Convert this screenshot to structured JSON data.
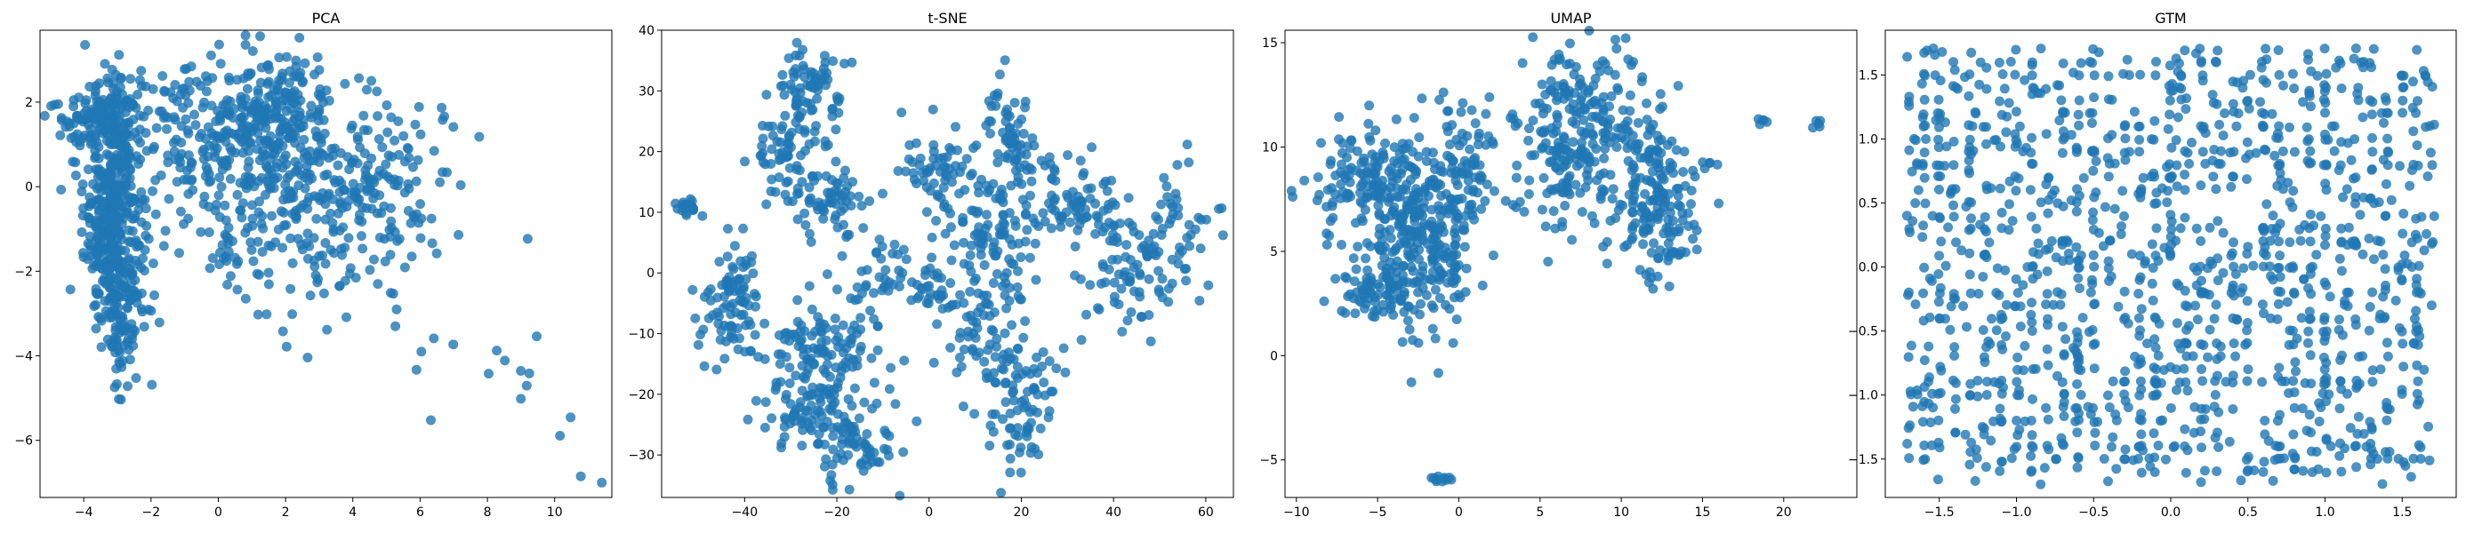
{
  "chart_data": [
    {
      "type": "scatter",
      "title": "PCA",
      "xlabel": "",
      "ylabel": "",
      "xlim": [
        -5.3,
        11.7
      ],
      "ylim": [
        -7.35,
        3.7
      ],
      "xticks": [
        -4,
        -2,
        0,
        2,
        4,
        6,
        8,
        10
      ],
      "yticks": [
        -6,
        -4,
        -2,
        0,
        2
      ],
      "grid": false,
      "color": "#1f77b4",
      "point_clusters": [
        {
          "center": [
            -3.1,
            -0.6
          ],
          "spread": [
            0.45,
            1.45
          ],
          "count": 420
        },
        {
          "center": [
            -3.5,
            1.7
          ],
          "spread": [
            0.7,
            0.5
          ],
          "count": 120
        },
        {
          "center": [
            -3.0,
            -2.8
          ],
          "spread": [
            0.35,
            0.9
          ],
          "count": 80
        },
        {
          "center": [
            -0.7,
            1.4
          ],
          "spread": [
            0.9,
            0.9
          ],
          "count": 90
        },
        {
          "center": [
            1.6,
            1.4
          ],
          "spread": [
            0.9,
            0.9
          ],
          "count": 260
        },
        {
          "center": [
            0.8,
            -0.4
          ],
          "spread": [
            1.4,
            1.1
          ],
          "count": 140
        },
        {
          "center": [
            3.8,
            0.3
          ],
          "spread": [
            1.2,
            1.0
          ],
          "count": 110
        },
        {
          "center": [
            5.6,
            0.0
          ],
          "spread": [
            1.0,
            0.9
          ],
          "count": 70
        },
        {
          "center": [
            3.5,
            -1.8
          ],
          "spread": [
            1.3,
            0.9
          ],
          "count": 50
        },
        {
          "center": [
            8.7,
            -4.6
          ],
          "spread": [
            1.2,
            0.9
          ],
          "count": 14
        },
        {
          "center": [
            10.7,
            -6.8
          ],
          "spread": [
            0.3,
            0.12
          ],
          "count": 2
        }
      ]
    },
    {
      "type": "scatter",
      "title": "t-SNE",
      "xlabel": "",
      "ylabel": "",
      "xlim": [
        -58,
        66
      ],
      "ylim": [
        -37,
        40
      ],
      "xticks": [
        -40,
        -20,
        0,
        20,
        40,
        60
      ],
      "yticks": [
        -30,
        -20,
        -10,
        0,
        10,
        20,
        30,
        40
      ],
      "grid": false,
      "color": "#1f77b4",
      "point_clusters": [
        {
          "center": [
            -52,
            11
          ],
          "spread": [
            1.5,
            0.8
          ],
          "count": 18
        },
        {
          "center": [
            -26,
            31
          ],
          "spread": [
            3.5,
            3.5
          ],
          "count": 70
        },
        {
          "center": [
            -30,
            20
          ],
          "spread": [
            4,
            4
          ],
          "count": 70
        },
        {
          "center": [
            -21,
            12
          ],
          "spread": [
            4,
            4
          ],
          "count": 60
        },
        {
          "center": [
            -42,
            -5
          ],
          "spread": [
            4,
            5
          ],
          "count": 90
        },
        {
          "center": [
            -22,
            -12
          ],
          "spread": [
            6,
            4
          ],
          "count": 110
        },
        {
          "center": [
            -28,
            -22
          ],
          "spread": [
            5,
            3
          ],
          "count": 70
        },
        {
          "center": [
            -17,
            -28
          ],
          "spread": [
            6,
            3
          ],
          "count": 80
        },
        {
          "center": [
            -10,
            0
          ],
          "spread": [
            3,
            3
          ],
          "count": 30
        },
        {
          "center": [
            0,
            -2
          ],
          "spread": [
            3,
            2
          ],
          "count": 30
        },
        {
          "center": [
            5,
            15
          ],
          "spread": [
            4,
            5
          ],
          "count": 60
        },
        {
          "center": [
            18,
            22
          ],
          "spread": [
            2.5,
            5
          ],
          "count": 70
        },
        {
          "center": [
            14,
            5
          ],
          "spread": [
            5,
            5
          ],
          "count": 80
        },
        {
          "center": [
            10,
            -8
          ],
          "spread": [
            4,
            5
          ],
          "count": 60
        },
        {
          "center": [
            20,
            -22
          ],
          "spread": [
            4,
            7
          ],
          "count": 90
        },
        {
          "center": [
            32,
            12
          ],
          "spread": [
            5,
            4
          ],
          "count": 70
        },
        {
          "center": [
            42,
            0
          ],
          "spread": [
            5,
            5
          ],
          "count": 70
        },
        {
          "center": [
            54,
            5
          ],
          "spread": [
            4,
            6
          ],
          "count": 50
        },
        {
          "center": [
            0,
            20
          ],
          "spread": [
            3,
            3
          ],
          "count": 20
        }
      ]
    },
    {
      "type": "scatter",
      "title": "UMAP",
      "xlabel": "",
      "ylabel": "",
      "xlim": [
        -10.7,
        24.5
      ],
      "ylim": [
        -6.8,
        15.6
      ],
      "xticks": [
        -10,
        -5,
        0,
        5,
        10,
        15,
        20
      ],
      "yticks": [
        -5,
        0,
        5,
        10,
        15
      ],
      "grid": false,
      "color": "#1f77b4",
      "point_clusters": [
        {
          "center": [
            -2.5,
            6.0
          ],
          "spread": [
            1.8,
            2.4
          ],
          "count": 320
        },
        {
          "center": [
            -6.0,
            8.5
          ],
          "spread": [
            1.5,
            1.2
          ],
          "count": 110
        },
        {
          "center": [
            -4.5,
            3.0
          ],
          "spread": [
            1.5,
            0.7
          ],
          "count": 60
        },
        {
          "center": [
            0.5,
            9.5
          ],
          "spread": [
            1.0,
            1.5
          ],
          "count": 60
        },
        {
          "center": [
            7.5,
            10.5
          ],
          "spread": [
            2.0,
            2.2
          ],
          "count": 260
        },
        {
          "center": [
            12.0,
            7.5
          ],
          "spread": [
            1.5,
            2.0
          ],
          "count": 170
        },
        {
          "center": [
            -1.2,
            -5.9
          ],
          "spread": [
            0.4,
            0.12
          ],
          "count": 12
        },
        {
          "center": [
            18.6,
            11.3
          ],
          "spread": [
            0.15,
            0.1
          ],
          "count": 5
        },
        {
          "center": [
            22.1,
            11.1
          ],
          "spread": [
            0.15,
            0.1
          ],
          "count": 5
        }
      ]
    },
    {
      "type": "scatter",
      "title": "GTM",
      "xlabel": "",
      "ylabel": "",
      "xlim": [
        -1.85,
        1.85
      ],
      "ylim": [
        -1.8,
        1.85
      ],
      "xticks": [
        -1.5,
        -1.0,
        -0.5,
        0.0,
        0.5,
        1.0,
        1.5
      ],
      "yticks": [
        -1.5,
        -1.0,
        -0.5,
        0.0,
        0.5,
        1.0,
        1.5
      ],
      "grid": false,
      "color": "#1f77b4",
      "grid_points": {
        "count": 1300,
        "xrange": [
          -1.7,
          1.7
        ],
        "yrange": [
          -1.68,
          1.7
        ],
        "lattice": 0.1
      }
    }
  ]
}
